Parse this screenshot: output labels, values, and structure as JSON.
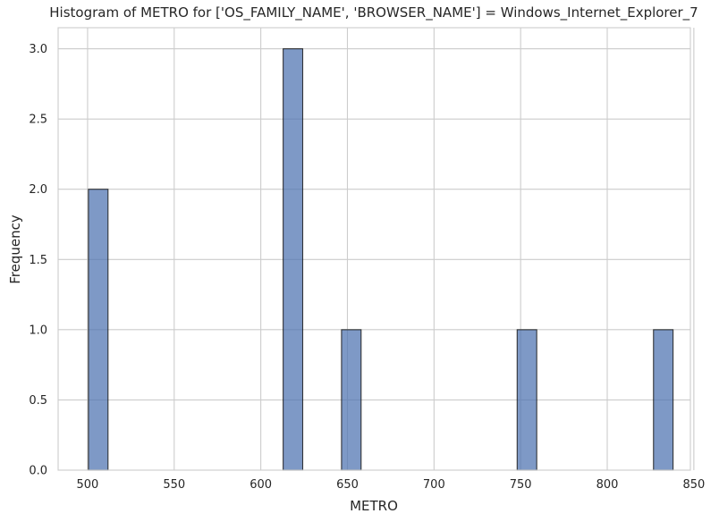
{
  "chart_data": {
    "type": "bar",
    "title": "Histogram of METRO for ['OS_FAMILY_NAME', 'BROWSER_NAME'] = Windows_Internet_Explorer_7",
    "xlabel": "METRO",
    "ylabel": "Frequency",
    "xlim": [
      483,
      848
    ],
    "ylim": [
      0,
      3.15
    ],
    "xticks": [
      500,
      550,
      600,
      650,
      700,
      750,
      800,
      850
    ],
    "yticks": [
      0.0,
      0.5,
      1.0,
      1.5,
      2.0,
      2.5,
      3.0
    ],
    "xtick_labels": [
      "500",
      "550",
      "600",
      "650",
      "700",
      "750",
      "800",
      "850"
    ],
    "ytick_labels": [
      "0.0",
      "0.5",
      "1.0",
      "1.5",
      "2.0",
      "2.5",
      "3.0"
    ],
    "grid": true,
    "bar_color": "#4c72b0",
    "bins": [
      {
        "x0": 500.5,
        "x1": 511.8,
        "count": 2
      },
      {
        "x0": 612.9,
        "x1": 624.2,
        "count": 3
      },
      {
        "x0": 646.6,
        "x1": 657.9,
        "count": 1
      },
      {
        "x0": 748.0,
        "x1": 759.3,
        "count": 1
      },
      {
        "x0": 826.7,
        "x1": 838.0,
        "count": 1
      }
    ]
  }
}
